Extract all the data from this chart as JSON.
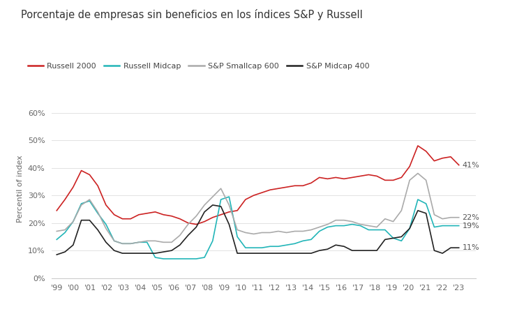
{
  "title": "Porcentaje de empresas sin beneficios en los índices S&P y Russell",
  "ylabel": "Percentil of index",
  "ylim": [
    0,
    0.65
  ],
  "yticks": [
    0.0,
    0.1,
    0.2,
    0.3,
    0.4,
    0.5,
    0.6
  ],
  "ytick_labels": [
    "0%",
    "10%",
    "20%",
    "30%",
    "40%",
    "50%",
    "60%"
  ],
  "xtick_labels": [
    "'99",
    "'00",
    "'01",
    "'02",
    "'03",
    "'04",
    "'05",
    "'06",
    "'07",
    "'08",
    "'09",
    "'10",
    "'11",
    "'12",
    "'13",
    "'14",
    "'15",
    "'16",
    "'17",
    "'18",
    "'19",
    "'20",
    "'21",
    "'22",
    "'23"
  ],
  "legend": [
    "Russell 2000",
    "Russell Midcap",
    "S&P Smallcap 600",
    "S&P Midcap 400"
  ],
  "colors": [
    "#cc2222",
    "#22b5b8",
    "#aaaaaa",
    "#222222"
  ],
  "end_labels": [
    "41%",
    "19%",
    "22%",
    "11%"
  ],
  "background_color": "#ffffff",
  "russell2000": [
    0.245,
    0.285,
    0.33,
    0.39,
    0.375,
    0.335,
    0.265,
    0.23,
    0.215,
    0.215,
    0.23,
    0.235,
    0.24,
    0.23,
    0.225,
    0.215,
    0.2,
    0.195,
    0.205,
    0.22,
    0.23,
    0.24,
    0.245,
    0.285,
    0.3,
    0.31,
    0.32,
    0.325,
    0.33,
    0.335,
    0.335,
    0.345,
    0.365,
    0.36,
    0.365,
    0.36,
    0.365,
    0.37,
    0.375,
    0.37,
    0.355,
    0.355,
    0.365,
    0.405,
    0.48,
    0.46,
    0.425,
    0.435,
    0.44,
    0.41
  ],
  "russell_midcap": [
    0.14,
    0.165,
    0.205,
    0.27,
    0.28,
    0.235,
    0.195,
    0.135,
    0.125,
    0.125,
    0.13,
    0.13,
    0.075,
    0.07,
    0.07,
    0.07,
    0.07,
    0.07,
    0.075,
    0.135,
    0.285,
    0.295,
    0.15,
    0.11,
    0.11,
    0.11,
    0.115,
    0.115,
    0.12,
    0.125,
    0.135,
    0.14,
    0.17,
    0.185,
    0.19,
    0.19,
    0.195,
    0.19,
    0.175,
    0.175,
    0.175,
    0.145,
    0.135,
    0.18,
    0.285,
    0.27,
    0.185,
    0.19,
    0.19,
    0.19
  ],
  "sp_smallcap": [
    0.17,
    0.175,
    0.205,
    0.265,
    0.285,
    0.24,
    0.18,
    0.135,
    0.125,
    0.125,
    0.13,
    0.135,
    0.135,
    0.13,
    0.13,
    0.155,
    0.195,
    0.225,
    0.265,
    0.295,
    0.325,
    0.265,
    0.175,
    0.165,
    0.16,
    0.165,
    0.165,
    0.17,
    0.165,
    0.17,
    0.17,
    0.175,
    0.185,
    0.195,
    0.21,
    0.21,
    0.205,
    0.195,
    0.19,
    0.185,
    0.215,
    0.205,
    0.245,
    0.355,
    0.38,
    0.355,
    0.23,
    0.215,
    0.22,
    0.22
  ],
  "sp_midcap": [
    0.085,
    0.095,
    0.12,
    0.21,
    0.21,
    0.175,
    0.13,
    0.1,
    0.09,
    0.09,
    0.09,
    0.09,
    0.09,
    0.095,
    0.1,
    0.12,
    0.155,
    0.185,
    0.24,
    0.265,
    0.26,
    0.195,
    0.09,
    0.09,
    0.09,
    0.09,
    0.09,
    0.09,
    0.09,
    0.09,
    0.09,
    0.09,
    0.1,
    0.105,
    0.12,
    0.115,
    0.1,
    0.1,
    0.1,
    0.1,
    0.14,
    0.145,
    0.15,
    0.18,
    0.245,
    0.235,
    0.1,
    0.09,
    0.11,
    0.11
  ]
}
